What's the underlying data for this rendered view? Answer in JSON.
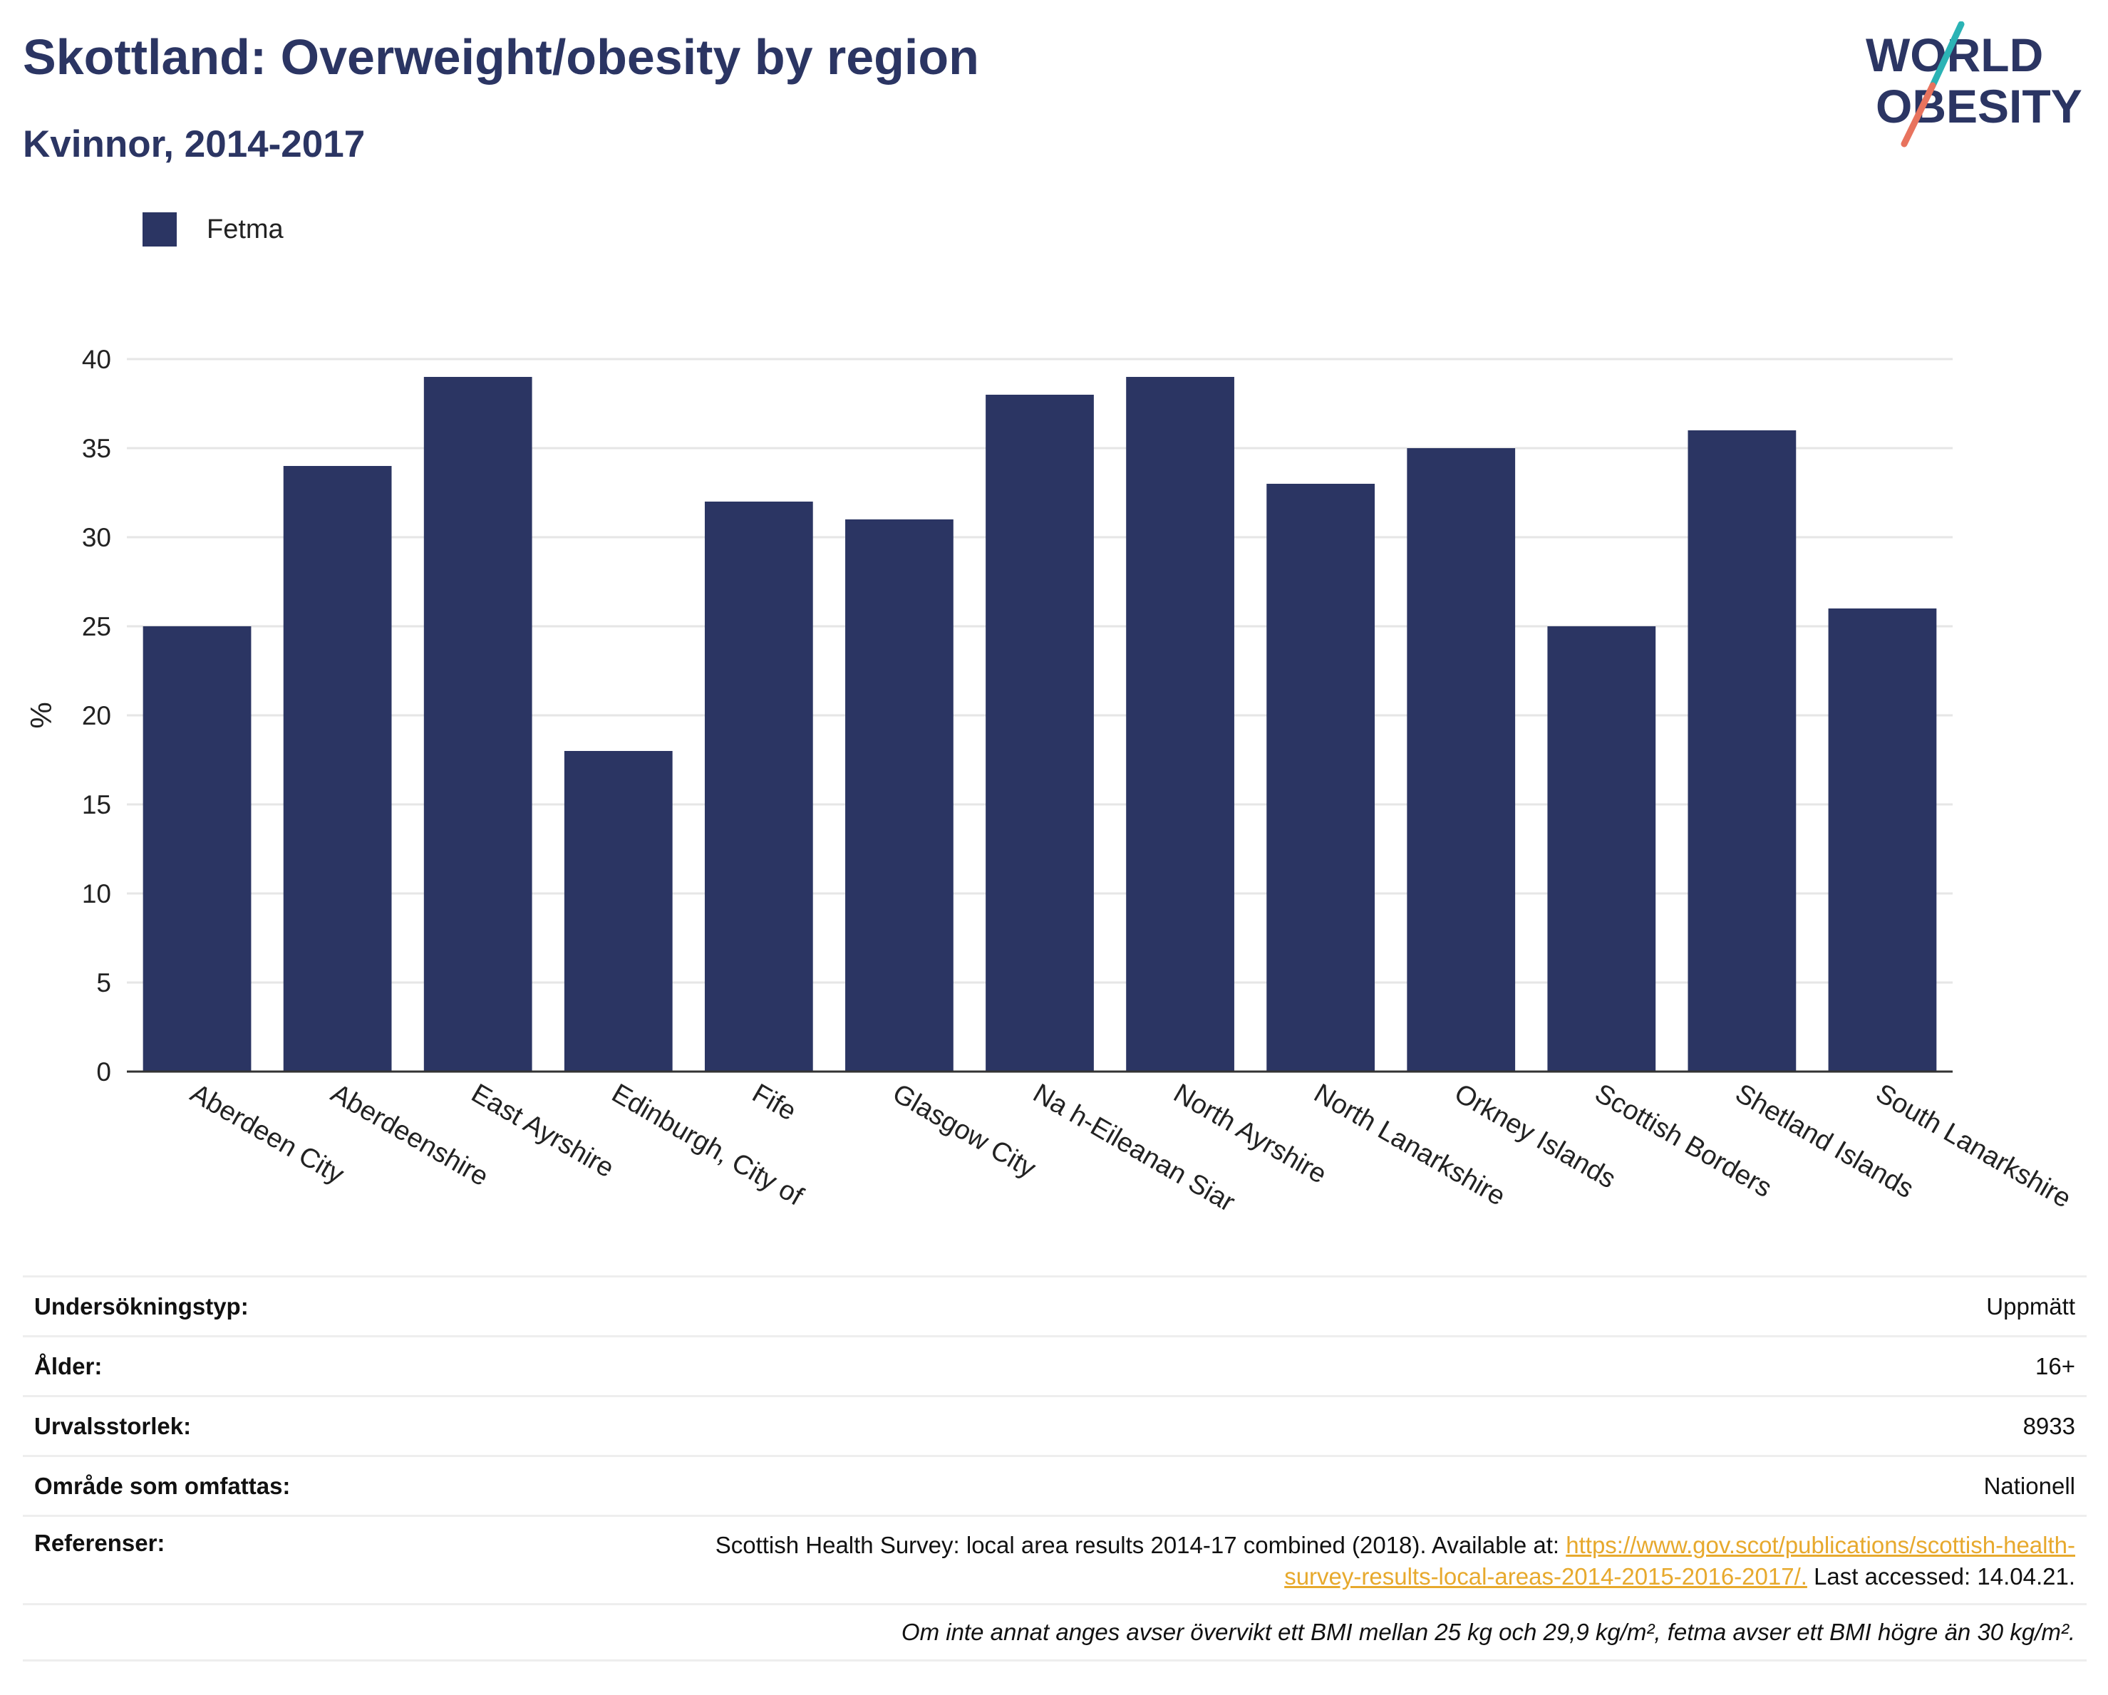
{
  "header": {
    "title": "Skottland: Overweight/obesity by region",
    "subtitle": "Kvinnor, 2014-2017"
  },
  "logo": {
    "line1": "WORLD",
    "line2": "OBESITY",
    "colors": {
      "text": "#2b3563",
      "slash_teal": "#2bb3b5",
      "slash_coral": "#e8735e"
    }
  },
  "colors": {
    "bar": "#2b3563",
    "grid": "#e6e6e6",
    "axis": "#333333",
    "link": "#e7a92d"
  },
  "chart_data": {
    "type": "bar",
    "ylabel": "%",
    "ylim": [
      0,
      40
    ],
    "yticks": [
      0,
      5,
      10,
      15,
      20,
      25,
      30,
      35,
      40
    ],
    "grid": true,
    "legend_position": "top-left",
    "categories": [
      "Aberdeen City",
      "Aberdeenshire",
      "East Ayrshire",
      "Edinburgh, City of",
      "Fife",
      "Glasgow City",
      "Na h-Eileanan Siar",
      "North Ayrshire",
      "North Lanarkshire",
      "Orkney Islands",
      "Scottish Borders",
      "Shetland Islands",
      "South Lanarkshire"
    ],
    "series": [
      {
        "name": "Fetma",
        "color": "#2b3563",
        "values": [
          25,
          34,
          39,
          18,
          32,
          31,
          38,
          39,
          33,
          35,
          25,
          36,
          26
        ]
      }
    ]
  },
  "info": {
    "survey_type": {
      "label": "Undersökningstyp:",
      "value": "Uppmätt"
    },
    "age": {
      "label": "Ålder:",
      "value": "16+"
    },
    "sample_size": {
      "label": "Urvalsstorlek:",
      "value": "8933"
    },
    "area": {
      "label": "Område som omfattas:",
      "value": "Nationell"
    },
    "references": {
      "label": "Referenser:",
      "text_before": "Scottish Health Survey: local area results 2014-17 combined (2018). Available at: ",
      "link_line1": "https://www.gov.scot/publications/scottish-health-",
      "link_line2": "survey-results-local-areas-2014-2015-2016-2017/.",
      "text_after": " Last accessed: 14.04.21."
    },
    "note": "Om inte annat anges avser övervikt ett BMI mellan 25 kg och 29,9 kg/m², fetma avser ett BMI högre än 30 kg/m²."
  }
}
